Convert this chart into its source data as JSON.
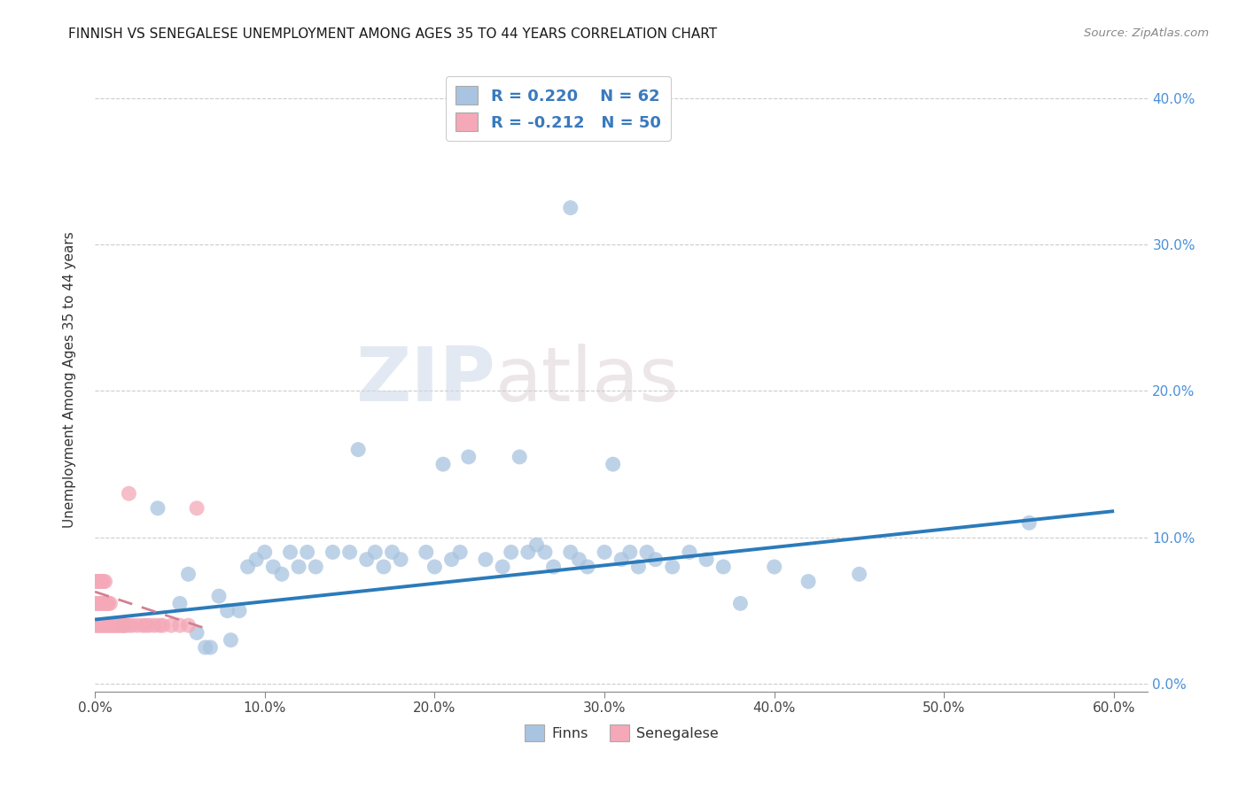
{
  "title": "FINNISH VS SENEGALESE UNEMPLOYMENT AMONG AGES 35 TO 44 YEARS CORRELATION CHART",
  "source": "Source: ZipAtlas.com",
  "ylabel": "Unemployment Among Ages 35 to 44 years",
  "xlim": [
    0.0,
    0.62
  ],
  "ylim": [
    -0.005,
    0.42
  ],
  "xtick_vals": [
    0.0,
    0.1,
    0.2,
    0.3,
    0.4,
    0.5,
    0.6
  ],
  "ytick_vals": [
    0.0,
    0.1,
    0.2,
    0.3,
    0.4
  ],
  "finns_color": "#a8c4e0",
  "senegalese_color": "#f4a8b8",
  "finns_line_color": "#2b7bba",
  "senegalese_line_color": "#d48090",
  "watermark_zip": "ZIP",
  "watermark_atlas": "atlas",
  "legend_R_finns": "0.220",
  "legend_N_finns": "62",
  "legend_R_senegalese": "-0.212",
  "legend_N_senegalese": "50",
  "finns_x": [
    0.017,
    0.037,
    0.05,
    0.055,
    0.06,
    0.065,
    0.068,
    0.073,
    0.078,
    0.08,
    0.085,
    0.09,
    0.095,
    0.1,
    0.105,
    0.11,
    0.115,
    0.12,
    0.125,
    0.13,
    0.14,
    0.15,
    0.155,
    0.16,
    0.165,
    0.17,
    0.175,
    0.18,
    0.195,
    0.2,
    0.205,
    0.21,
    0.215,
    0.22,
    0.23,
    0.24,
    0.245,
    0.25,
    0.255,
    0.26,
    0.265,
    0.27,
    0.28,
    0.285,
    0.29,
    0.3,
    0.305,
    0.31,
    0.315,
    0.32,
    0.325,
    0.33,
    0.34,
    0.35,
    0.36,
    0.37,
    0.38,
    0.4,
    0.42,
    0.45,
    0.55,
    0.28
  ],
  "finns_y": [
    0.04,
    0.12,
    0.055,
    0.075,
    0.035,
    0.025,
    0.025,
    0.06,
    0.05,
    0.03,
    0.05,
    0.08,
    0.085,
    0.09,
    0.08,
    0.075,
    0.09,
    0.08,
    0.09,
    0.08,
    0.09,
    0.09,
    0.16,
    0.085,
    0.09,
    0.08,
    0.09,
    0.085,
    0.09,
    0.08,
    0.15,
    0.085,
    0.09,
    0.155,
    0.085,
    0.08,
    0.09,
    0.155,
    0.09,
    0.095,
    0.09,
    0.08,
    0.09,
    0.085,
    0.08,
    0.09,
    0.15,
    0.085,
    0.09,
    0.08,
    0.09,
    0.085,
    0.08,
    0.09,
    0.085,
    0.08,
    0.055,
    0.08,
    0.07,
    0.075,
    0.11,
    0.325
  ],
  "senegalese_x": [
    0.0,
    0.0,
    0.0,
    0.001,
    0.001,
    0.001,
    0.002,
    0.002,
    0.002,
    0.003,
    0.003,
    0.003,
    0.004,
    0.004,
    0.004,
    0.005,
    0.005,
    0.005,
    0.006,
    0.006,
    0.006,
    0.007,
    0.007,
    0.008,
    0.008,
    0.009,
    0.009,
    0.01,
    0.011,
    0.012,
    0.013,
    0.014,
    0.015,
    0.016,
    0.017,
    0.018,
    0.02,
    0.022,
    0.025,
    0.028,
    0.03,
    0.032,
    0.035,
    0.038,
    0.04,
    0.045,
    0.05,
    0.055,
    0.06,
    0.02
  ],
  "senegalese_y": [
    0.04,
    0.055,
    0.07,
    0.04,
    0.055,
    0.07,
    0.04,
    0.055,
    0.07,
    0.04,
    0.055,
    0.07,
    0.04,
    0.055,
    0.07,
    0.04,
    0.055,
    0.07,
    0.04,
    0.055,
    0.07,
    0.04,
    0.055,
    0.04,
    0.055,
    0.04,
    0.055,
    0.04,
    0.04,
    0.04,
    0.04,
    0.04,
    0.04,
    0.04,
    0.04,
    0.04,
    0.04,
    0.04,
    0.04,
    0.04,
    0.04,
    0.04,
    0.04,
    0.04,
    0.04,
    0.04,
    0.04,
    0.04,
    0.12,
    0.13
  ],
  "finns_trend_x": [
    0.0,
    0.6
  ],
  "finns_trend_y": [
    0.044,
    0.118
  ],
  "sene_trend_x": [
    0.0,
    0.065
  ],
  "sene_trend_y": [
    0.063,
    0.038
  ]
}
